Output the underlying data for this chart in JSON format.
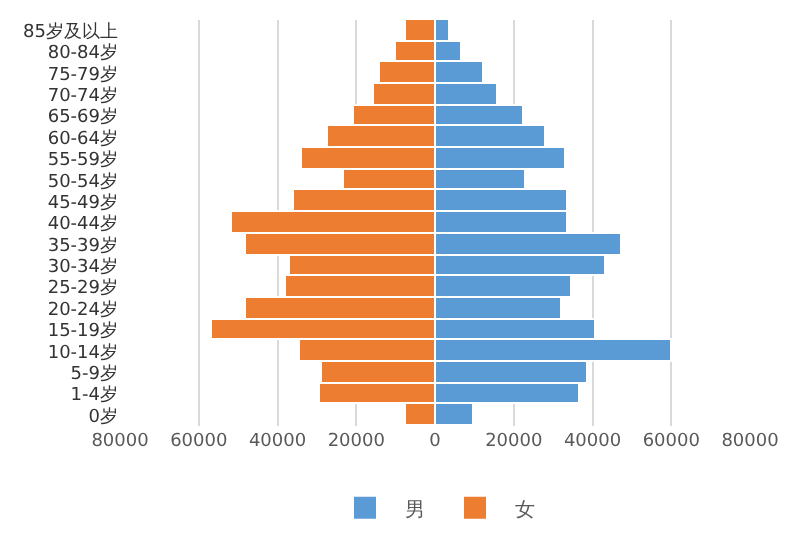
{
  "chart_data": {
    "type": "bar",
    "orientation": "horizontal",
    "stacked": true,
    "categories": [
      "85岁及以上",
      "80-84岁",
      "75-79岁",
      "70-74岁",
      "65-69岁",
      "60-64岁",
      "55-59岁",
      "50-54岁",
      "45-49岁",
      "40-44岁",
      "35-39岁",
      "30-34岁",
      "25-29岁",
      "20-24岁",
      "15-19岁",
      "10-14岁",
      "5-9岁",
      "1-4岁",
      "0岁"
    ],
    "series": [
      {
        "name": "男",
        "color": "#5b9bd5",
        "values": [
          4000,
          6800,
          12200,
          15900,
          22500,
          28300,
          33400,
          23300,
          33700,
          33700,
          47300,
          43500,
          34900,
          32200,
          41000,
          60000,
          38700,
          37000,
          9800
        ]
      },
      {
        "name": "女",
        "color": "#ed7d31",
        "values": [
          -7600,
          -9800,
          -14200,
          -15700,
          -20700,
          -27100,
          -33900,
          -23100,
          -35900,
          -51400,
          -47900,
          -37000,
          -37700,
          -47900,
          -56400,
          -34500,
          -28800,
          -29400,
          -7400
        ]
      }
    ],
    "xlim": [
      -80000,
      80000
    ],
    "xticks": [
      {
        "value": -80000,
        "label": "80000"
      },
      {
        "value": -60000,
        "label": "60000"
      },
      {
        "value": -40000,
        "label": "40000"
      },
      {
        "value": -20000,
        "label": "20000"
      },
      0,
      20000,
      40000,
      60000,
      80000
    ],
    "grid": "x",
    "legend": "bottom"
  }
}
